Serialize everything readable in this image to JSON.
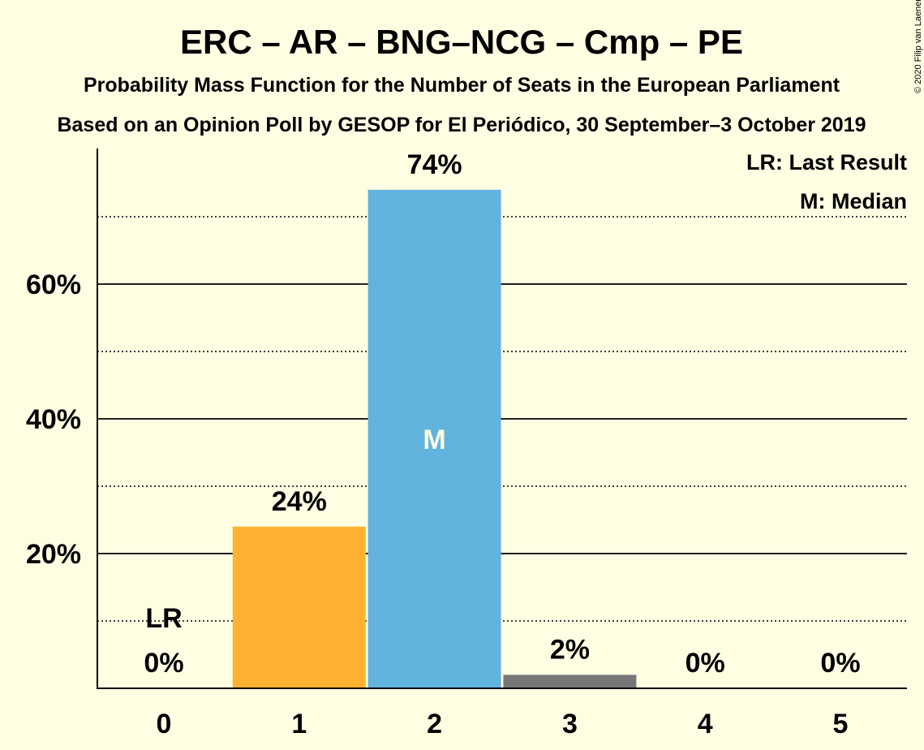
{
  "chart_data": {
    "type": "bar",
    "title": "ERC – AR – BNG–NCG – Cmp – PE",
    "subtitle": "Probability Mass Function for the Number of Seats in the European Parliament",
    "subtitle2": "Based on an Opinion Poll by GESOP for El Periódico, 30 September–3 October 2019",
    "copyright": "© 2020 Filip van Laenen",
    "categories": [
      "0",
      "1",
      "2",
      "3",
      "4",
      "5"
    ],
    "values": [
      0,
      24,
      74,
      2,
      0,
      0
    ],
    "value_labels": [
      "0%",
      "24%",
      "74%",
      "2%",
      "0%",
      "0%"
    ],
    "bar_colors": [
      "#FFB232",
      "#FFB232",
      "#62B3DE",
      "#777777",
      "#777777",
      "#777777"
    ],
    "ylim": [
      0,
      80
    ],
    "y_ticks": [
      20,
      40,
      60
    ],
    "y_tick_labels": [
      "20%",
      "40%",
      "60%"
    ],
    "minor_gridlines": [
      10,
      30,
      50,
      70
    ],
    "last_result_index": 0,
    "last_result_label": "LR",
    "median_index": 2,
    "median_label": "M",
    "legend": [
      "LR: Last Result",
      "M: Median"
    ],
    "legend_position": "top-right",
    "grid": true
  }
}
